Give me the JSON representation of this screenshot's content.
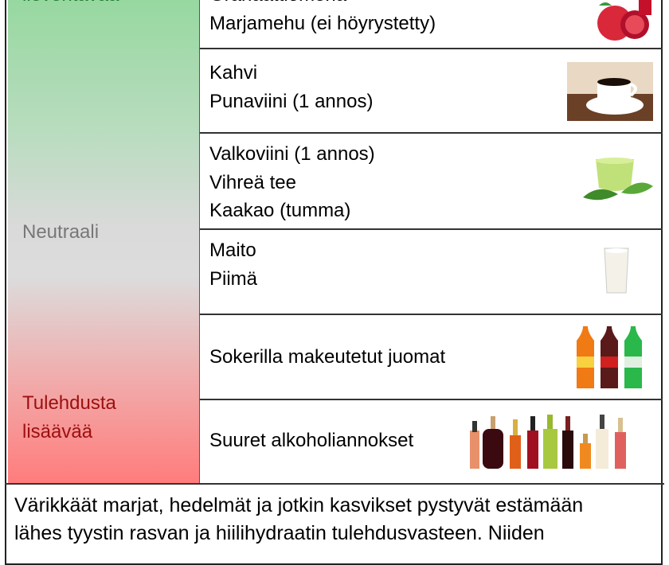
{
  "categories": [
    {
      "label": "lieventävää",
      "color": "#1e7a2e"
    },
    {
      "label": "Neutraali",
      "color": "#777777"
    },
    {
      "label": "Tulehdusta lisäävää",
      "line1": "Tulehdusta",
      "line2": "lisäävää",
      "color": "#9b1010"
    }
  ],
  "rows": [
    {
      "items": [
        "Granaattiomena",
        "Marjamehu (ei höyrystetty)"
      ],
      "icon": "pomegranate-image"
    },
    {
      "items": [
        "Kahvi",
        "Punaviini (1 annos)"
      ],
      "icon": "coffee-cup-image"
    },
    {
      "items": [
        "Valkoviini (1 annos)",
        "Vihreä tee",
        "Kaakao (tumma)"
      ],
      "icon": "green-tea-image"
    },
    {
      "items": [
        "Maito",
        "Piimä"
      ],
      "icon": "milk-glass-image"
    },
    {
      "items": [
        "Sokerilla makeutetut juomat"
      ],
      "icon": "soda-bottles-image"
    },
    {
      "items": [
        "Suuret alkoholiannokset"
      ],
      "icon": "alcohol-bottles-image"
    }
  ],
  "paragraph": {
    "line1": "Värikkäät marjat, hedelmät ja jotkin kasvikset pystyvät estämään",
    "line2": "lähes tyystin rasvan ja hiilihydraatin tulehdusvasteen. Niiden"
  }
}
